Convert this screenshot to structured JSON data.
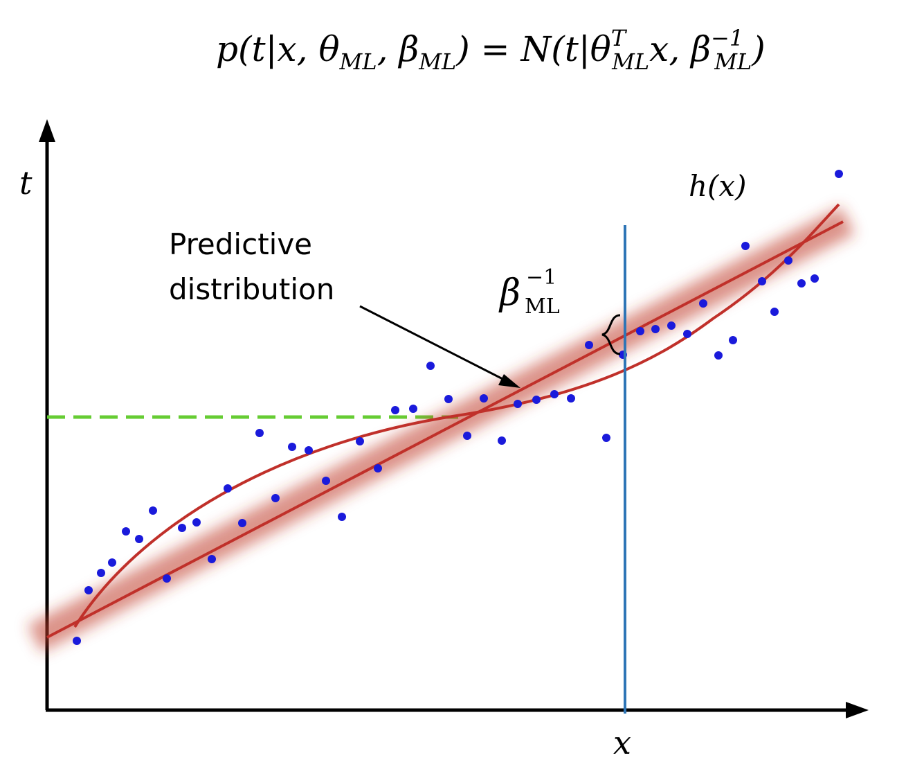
{
  "formula": [
    "p(t|x, θ",
    "ML",
    ", β",
    "ML",
    ") = N(t|θ",
    "T",
    "ML",
    "x, β",
    "−1",
    "ML",
    ")"
  ],
  "axis_labels": {
    "y": "t",
    "x": "x"
  },
  "curve_label": "h(x)",
  "annotation": [
    "Predictive",
    "distribution"
  ],
  "beta_label": {
    "symbol": "β",
    "superscript": "−1",
    "subscript": "ML"
  }
}
